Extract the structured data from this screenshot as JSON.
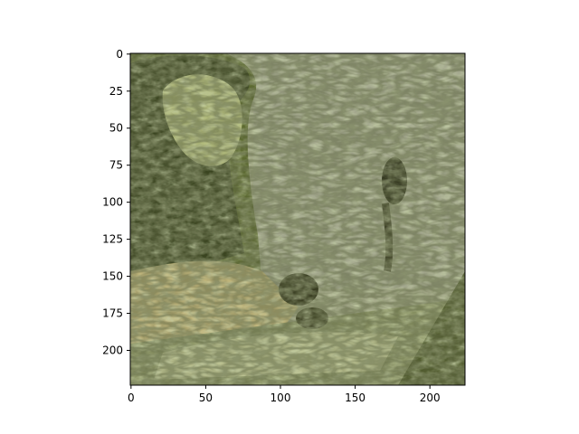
{
  "figure": {
    "background": "#ffffff",
    "image_description_colors": {
      "dark": "#1f2410",
      "olive": "#6f7a45",
      "light_green": "#bccb8b",
      "gray_green": "#a7ab92",
      "tan": "#c9b57d"
    }
  },
  "axes": {
    "x_ticks": [
      {
        "value": 0,
        "label": "0"
      },
      {
        "value": 50,
        "label": "50"
      },
      {
        "value": 100,
        "label": "100"
      },
      {
        "value": 150,
        "label": "150"
      },
      {
        "value": 200,
        "label": "200"
      }
    ],
    "y_ticks": [
      {
        "value": 0,
        "label": "0"
      },
      {
        "value": 25,
        "label": "25"
      },
      {
        "value": 50,
        "label": "50"
      },
      {
        "value": 75,
        "label": "75"
      },
      {
        "value": 100,
        "label": "100"
      },
      {
        "value": 125,
        "label": "125"
      },
      {
        "value": 150,
        "label": "150"
      },
      {
        "value": 175,
        "label": "175"
      },
      {
        "value": 200,
        "label": "200"
      }
    ],
    "xlim": [
      -0.5,
      223.5
    ],
    "ylim": [
      223.5,
      -0.5
    ]
  }
}
